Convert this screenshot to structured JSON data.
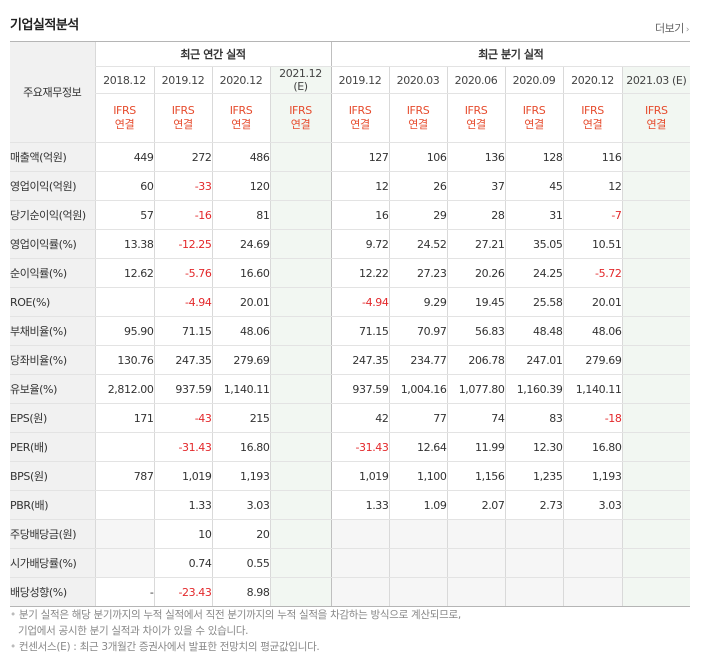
{
  "title": "기업실적분석",
  "more_label": "더보기",
  "table": {
    "row_header_label": "주요재무정보",
    "annual_group_label": "최근 연간 실적",
    "quarter_group_label": "최근 분기 실적",
    "annual_periods": [
      "2018.12",
      "2019.12",
      "2020.12",
      "2021.12 (E)"
    ],
    "quarter_periods": [
      "2019.12",
      "2020.03",
      "2020.06",
      "2020.09",
      "2020.12",
      "2021.03 (E)"
    ],
    "ifrs_top": "IFRS",
    "ifrs_bottom": "연결",
    "rows": [
      {
        "label": "매출액(억원)",
        "annual": [
          "449",
          "272",
          "486",
          ""
        ],
        "quarter": [
          "127",
          "106",
          "136",
          "128",
          "116",
          ""
        ]
      },
      {
        "label": "영업이익(억원)",
        "annual": [
          "60",
          "-33",
          "120",
          ""
        ],
        "quarter": [
          "12",
          "26",
          "37",
          "45",
          "12",
          ""
        ]
      },
      {
        "label": "당기순이익(억원)",
        "annual": [
          "57",
          "-16",
          "81",
          ""
        ],
        "quarter": [
          "16",
          "29",
          "28",
          "31",
          "-7",
          ""
        ]
      },
      {
        "label": "영업이익률(%)",
        "annual": [
          "13.38",
          "-12.25",
          "24.69",
          ""
        ],
        "quarter": [
          "9.72",
          "24.52",
          "27.21",
          "35.05",
          "10.51",
          ""
        ]
      },
      {
        "label": "순이익률(%)",
        "annual": [
          "12.62",
          "-5.76",
          "16.60",
          ""
        ],
        "quarter": [
          "12.22",
          "27.23",
          "20.26",
          "24.25",
          "-5.72",
          ""
        ]
      },
      {
        "label": "ROE(%)",
        "annual": [
          "",
          "-4.94",
          "20.01",
          ""
        ],
        "quarter": [
          "-4.94",
          "9.29",
          "19.45",
          "25.58",
          "20.01",
          ""
        ]
      },
      {
        "label": "부채비율(%)",
        "annual": [
          "95.90",
          "71.15",
          "48.06",
          ""
        ],
        "quarter": [
          "71.15",
          "70.97",
          "56.83",
          "48.48",
          "48.06",
          ""
        ]
      },
      {
        "label": "당좌비율(%)",
        "annual": [
          "130.76",
          "247.35",
          "279.69",
          ""
        ],
        "quarter": [
          "247.35",
          "234.77",
          "206.78",
          "247.01",
          "279.69",
          ""
        ]
      },
      {
        "label": "유보율(%)",
        "annual": [
          "2,812.00",
          "937.59",
          "1,140.11",
          ""
        ],
        "quarter": [
          "937.59",
          "1,004.16",
          "1,077.80",
          "1,160.39",
          "1,140.11",
          ""
        ]
      },
      {
        "label": "EPS(원)",
        "annual": [
          "171",
          "-43",
          "215",
          ""
        ],
        "quarter": [
          "42",
          "77",
          "74",
          "83",
          "-18",
          ""
        ]
      },
      {
        "label": "PER(배)",
        "annual": [
          "",
          "-31.43",
          "16.80",
          ""
        ],
        "quarter": [
          "-31.43",
          "12.64",
          "11.99",
          "12.30",
          "16.80",
          ""
        ]
      },
      {
        "label": "BPS(원)",
        "annual": [
          "787",
          "1,019",
          "1,193",
          ""
        ],
        "quarter": [
          "1,019",
          "1,100",
          "1,156",
          "1,235",
          "1,193",
          ""
        ]
      },
      {
        "label": "PBR(배)",
        "annual": [
          "",
          "1.33",
          "3.03",
          ""
        ],
        "quarter": [
          "1.33",
          "1.09",
          "2.07",
          "2.73",
          "3.03",
          ""
        ]
      },
      {
        "label": "주당배당금(원)",
        "annual": [
          "",
          "10",
          "20",
          ""
        ],
        "quarter": [
          "",
          "",
          "",
          "",
          "",
          ""
        ]
      },
      {
        "label": "시가배당률(%)",
        "annual": [
          "",
          "0.74",
          "0.55",
          ""
        ],
        "quarter": [
          "",
          "",
          "",
          "",
          "",
          ""
        ]
      },
      {
        "label": "배당성향(%)",
        "annual": [
          "-",
          "-23.43",
          "8.98",
          ""
        ],
        "quarter": [
          "",
          "",
          "",
          "",
          "",
          ""
        ]
      }
    ]
  },
  "notes": {
    "line1": "분기 실적은 해당 분기까지의 누적 실적에서 직전 분기까지의 누적 실적을 차감하는 방식으로 계산되므로,",
    "line2": "기업에서 공시한 분기 실적과 차이가 있을 수 있습니다.",
    "line3": "컨센서스(E) : 최근 3개월간 증권사에서 발표한 전망치의 평균값입니다."
  },
  "colors": {
    "negative": "#e3282b",
    "ifrs": "#e64c2e",
    "estimate_bg": "#f2f7f2",
    "label_bg": "#f1f1f1"
  }
}
